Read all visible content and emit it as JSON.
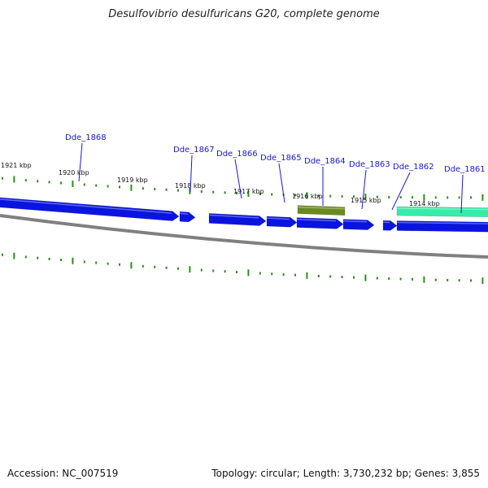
{
  "title": "Desulfovibrio desulfuricans G20, complete genome",
  "accession": "Accession: NC_007519",
  "summary": "Topology: circular; Length: 3,730,232 bp; Genes: 3,855",
  "colors": {
    "cds": "#0a14e0",
    "rna": "#6a8a20",
    "other": "#33eea8",
    "backbone": "#808080",
    "tick": "#2e8b1e",
    "gene_label": "#1a1acc"
  },
  "kbp_marks": [
    "1921 kbp",
    "1920 kbp",
    "1919 kbp",
    "1918 kbp",
    "1917 kbp",
    "1916 kbp",
    "1915 kbp",
    "1914 kbp"
  ],
  "gene_labels": [
    "Dde_1868",
    "Dde_1867",
    "Dde_1866",
    "Dde_1865",
    "Dde_1864",
    "Dde_1863",
    "Dde_1862",
    "Dde_1861"
  ],
  "features": [
    {
      "type": "CDS"
    },
    {
      "type": "CDS"
    },
    {
      "type": "CDS"
    },
    {
      "type": "CDS"
    },
    {
      "type": "CDS"
    },
    {
      "type": "RNA"
    },
    {
      "type": "CDS"
    },
    {
      "type": "CDS"
    },
    {
      "type": "CDS"
    },
    {
      "type": "other"
    }
  ]
}
